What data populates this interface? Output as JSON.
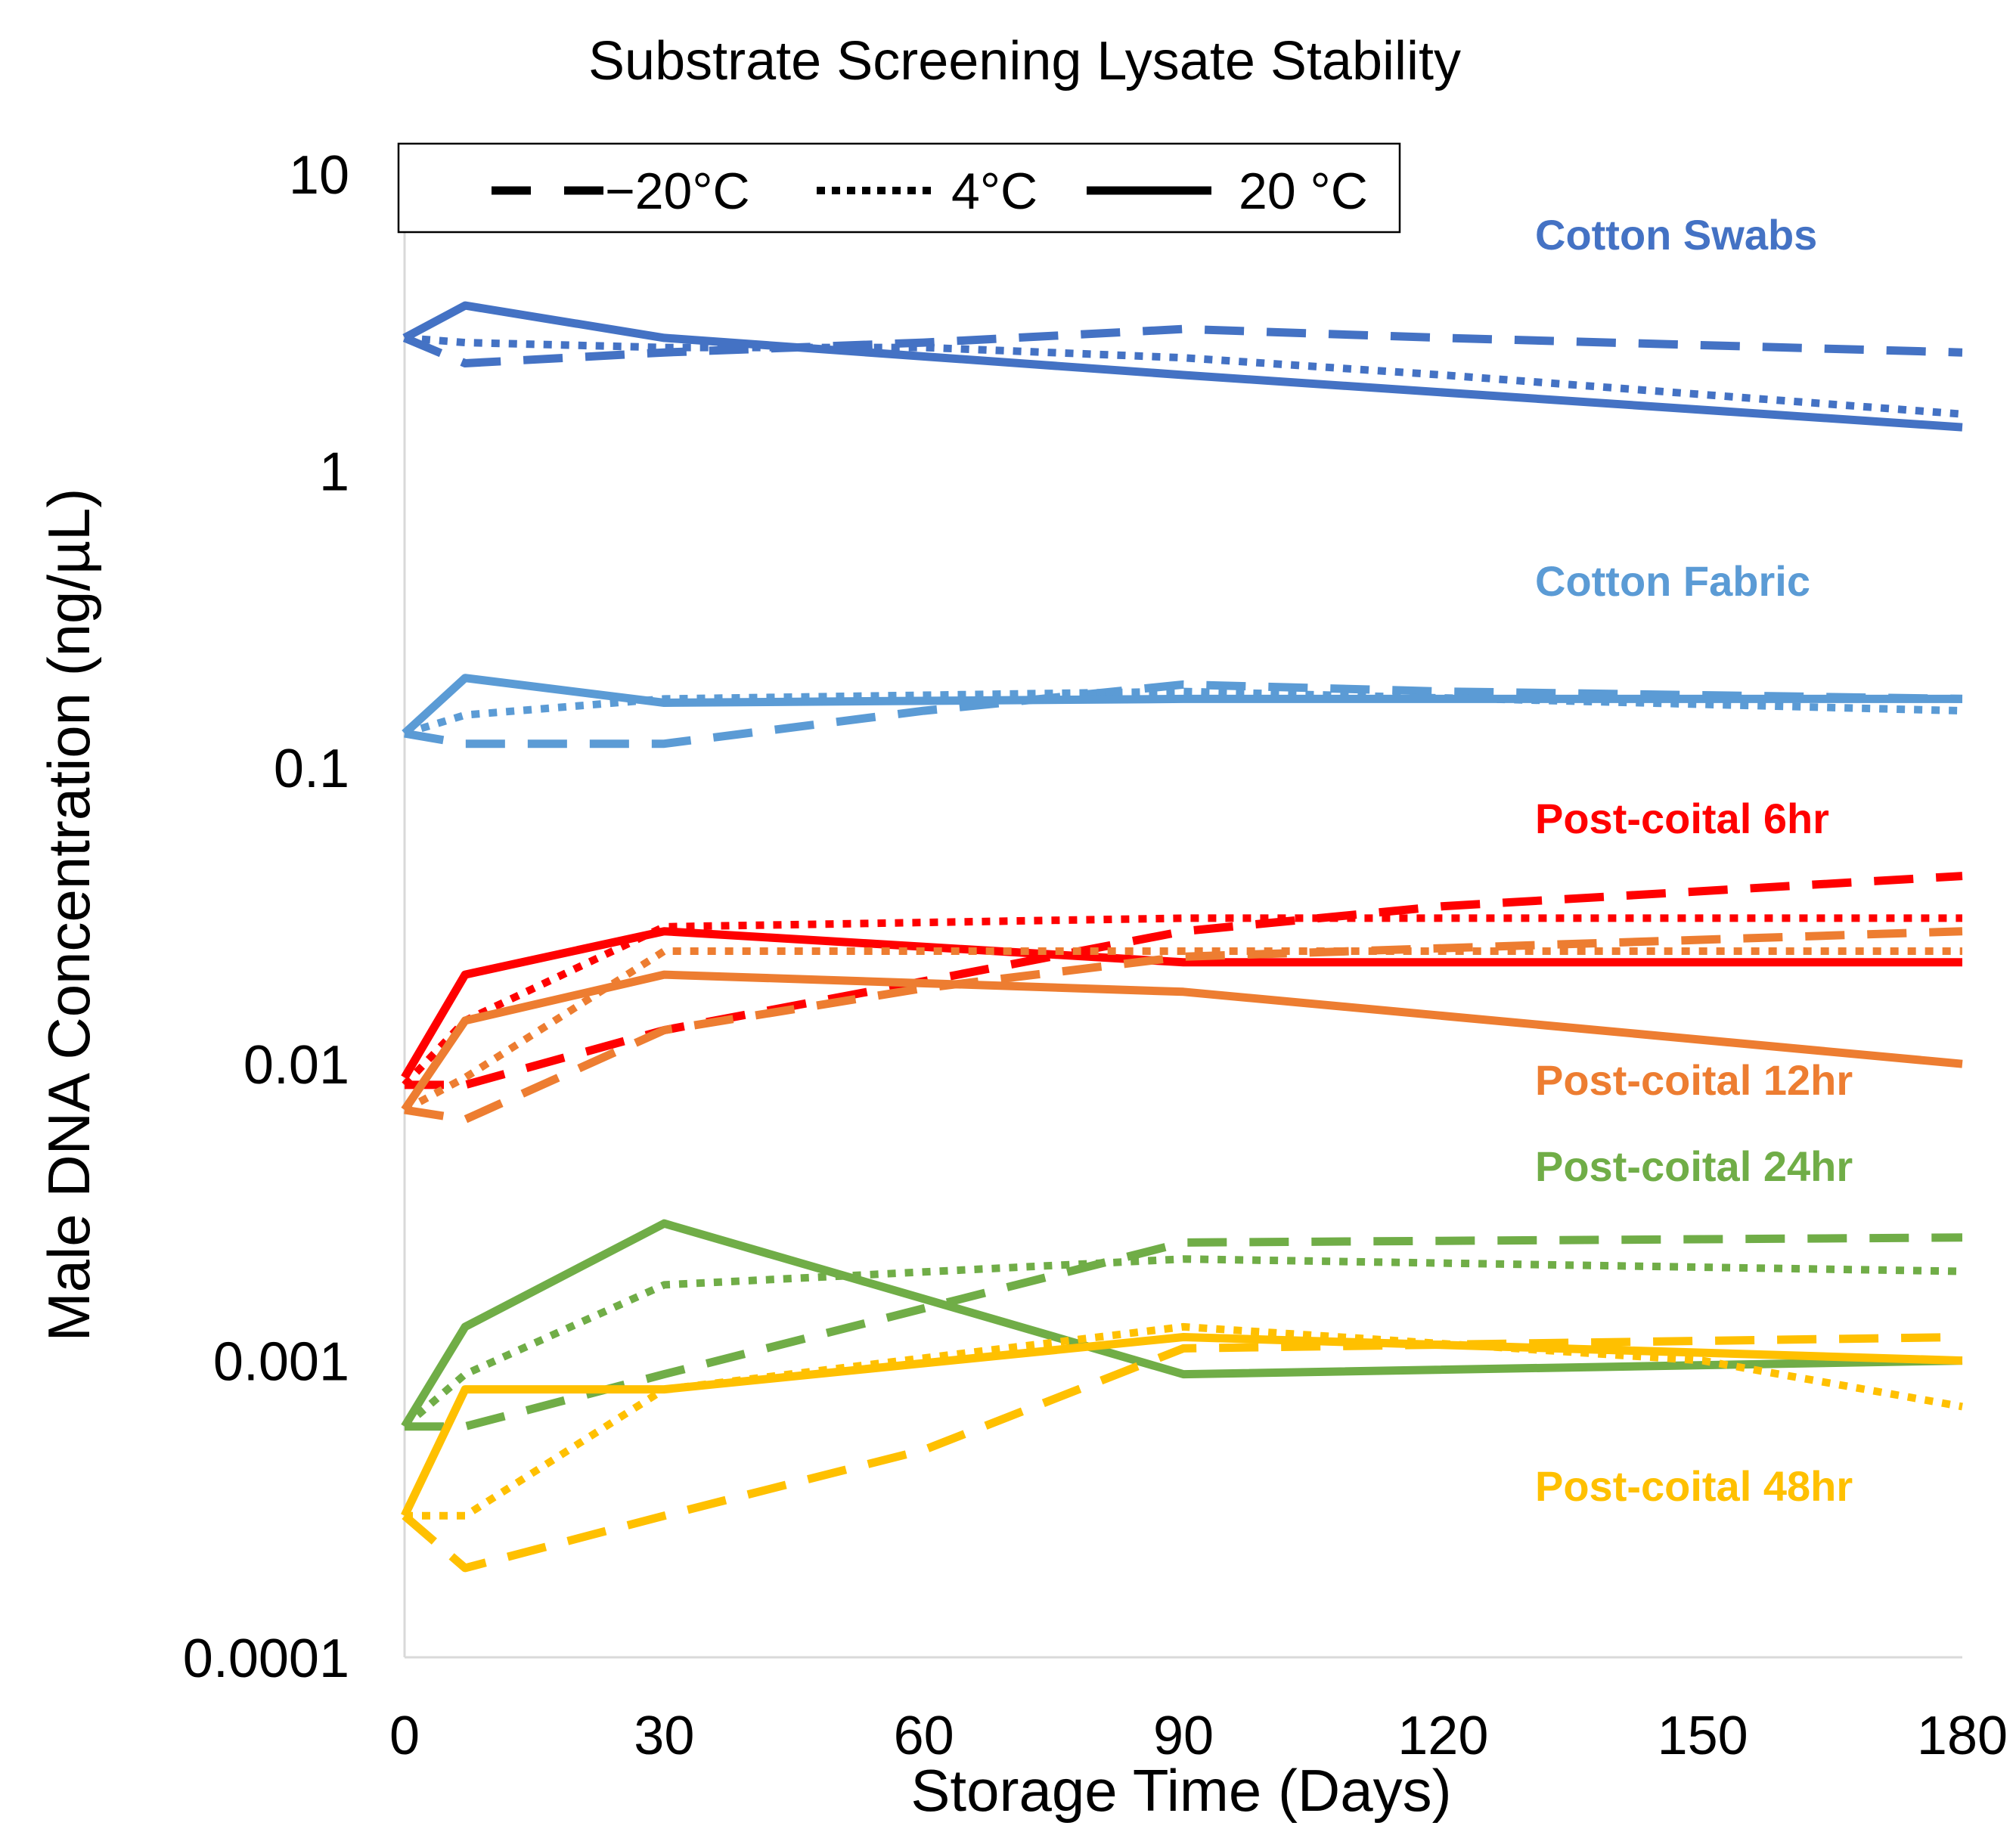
{
  "chart_data": {
    "type": "line",
    "title": "Substrate Screening Lysate Stability",
    "xlabel": "Storage Time (Days)",
    "ylabel": "Male DNA Concentration (ng/µL)",
    "x_ticks": [
      0,
      30,
      60,
      90,
      120,
      150,
      180
    ],
    "y_ticks": [
      "10",
      "1",
      "0.1",
      "0.01",
      "0.001",
      "0.0001"
    ],
    "y_tick_values": [
      10,
      1,
      0.1,
      0.01,
      0.001,
      0.0001
    ],
    "xlim": [
      0,
      180
    ],
    "ylim": [
      0.0001,
      10
    ],
    "y_scale": "log",
    "grid": false,
    "legend": {
      "placement": "top-left",
      "entries": [
        {
          "label": "−20°C",
          "style": "dashed"
        },
        {
          "label": "4°C",
          "style": "dotted"
        },
        {
          "label": "20 °C",
          "style": "solid"
        }
      ]
    },
    "groups": [
      {
        "label": "Cotton Swabs",
        "color": "#4472C4",
        "series": [
          {
            "temp": "−20°C",
            "style": "dashed",
            "points": [
              [
                0,
                2.8
              ],
              [
                7,
                2.3
              ],
              [
                30,
                2.5
              ],
              [
                60,
                2.7
              ],
              [
                90,
                3.0
              ],
              [
                120,
                2.8
              ],
              [
                180,
                2.5
              ]
            ]
          },
          {
            "temp": "4°C",
            "style": "dotted",
            "points": [
              [
                0,
                2.8
              ],
              [
                7,
                2.7
              ],
              [
                30,
                2.6
              ],
              [
                60,
                2.6
              ],
              [
                90,
                2.4
              ],
              [
                120,
                2.1
              ],
              [
                180,
                1.55
              ]
            ]
          },
          {
            "temp": "20 °C",
            "style": "solid",
            "points": [
              [
                0,
                2.8
              ],
              [
                7,
                3.6
              ],
              [
                30,
                2.8
              ],
              [
                90,
                2.1
              ],
              [
                180,
                1.4
              ]
            ]
          }
        ]
      },
      {
        "label": "Cotton Fabric",
        "color": "#5B9BD5",
        "series": [
          {
            "temp": "−20°C",
            "style": "dashed",
            "points": [
              [
                0,
                0.13
              ],
              [
                7,
                0.12
              ],
              [
                30,
                0.12
              ],
              [
                60,
                0.155
              ],
              [
                90,
                0.19
              ],
              [
                120,
                0.18
              ],
              [
                180,
                0.17
              ]
            ]
          },
          {
            "temp": "4°C",
            "style": "dotted",
            "points": [
              [
                0,
                0.13
              ],
              [
                7,
                0.15
              ],
              [
                30,
                0.17
              ],
              [
                90,
                0.18
              ],
              [
                180,
                0.155
              ]
            ]
          },
          {
            "temp": "20 °C",
            "style": "solid",
            "points": [
              [
                0,
                0.13
              ],
              [
                7,
                0.2
              ],
              [
                30,
                0.165
              ],
              [
                90,
                0.17
              ],
              [
                180,
                0.17
              ]
            ]
          }
        ]
      },
      {
        "label": "Post-coital 6hr",
        "color": "#FF0000",
        "series": [
          {
            "temp": "−20°C",
            "style": "dashed",
            "points": [
              [
                0,
                0.0085
              ],
              [
                7,
                0.0085
              ],
              [
                30,
                0.013
              ],
              [
                60,
                0.019
              ],
              [
                90,
                0.028
              ],
              [
                120,
                0.034
              ],
              [
                180,
                0.043
              ]
            ]
          },
          {
            "temp": "4°C",
            "style": "dotted",
            "points": [
              [
                0,
                0.0085
              ],
              [
                7,
                0.014
              ],
              [
                30,
                0.029
              ],
              [
                90,
                0.031
              ],
              [
                180,
                0.031
              ]
            ]
          },
          {
            "temp": "20 °C",
            "style": "solid",
            "points": [
              [
                0,
                0.009
              ],
              [
                7,
                0.02
              ],
              [
                30,
                0.028
              ],
              [
                90,
                0.022
              ],
              [
                180,
                0.022
              ]
            ]
          }
        ]
      },
      {
        "label": "Post-coital 12hr",
        "color": "#ED7D31",
        "series": [
          {
            "temp": "−20°C",
            "style": "dashed",
            "points": [
              [
                0,
                0.007
              ],
              [
                7,
                0.0065
              ],
              [
                30,
                0.013
              ],
              [
                60,
                0.018
              ],
              [
                90,
                0.023
              ],
              [
                180,
                0.028
              ]
            ]
          },
          {
            "temp": "4°C",
            "style": "dotted",
            "points": [
              [
                0,
                0.007
              ],
              [
                7,
                0.009
              ],
              [
                30,
                0.024
              ],
              [
                90,
                0.024
              ],
              [
                180,
                0.024
              ]
            ]
          },
          {
            "temp": "20 °C",
            "style": "solid",
            "points": [
              [
                0,
                0.007
              ],
              [
                7,
                0.014
              ],
              [
                30,
                0.02
              ],
              [
                90,
                0.0175
              ],
              [
                180,
                0.01
              ]
            ]
          }
        ]
      },
      {
        "label": "Post-coital 24hr",
        "color": "#70AD47",
        "series": [
          {
            "temp": "−20°C",
            "style": "dashed",
            "points": [
              [
                0,
                0.0006
              ],
              [
                7,
                0.0006
              ],
              [
                30,
                0.0009
              ],
              [
                60,
                0.0015
              ],
              [
                90,
                0.0025
              ],
              [
                180,
                0.0026
              ]
            ]
          },
          {
            "temp": "4°C",
            "style": "dotted",
            "points": [
              [
                0,
                0.0006
              ],
              [
                7,
                0.0009
              ],
              [
                30,
                0.0018
              ],
              [
                90,
                0.0022
              ],
              [
                180,
                0.002
              ]
            ]
          },
          {
            "temp": "20 °C",
            "style": "solid",
            "points": [
              [
                0,
                0.0006
              ],
              [
                7,
                0.0013
              ],
              [
                30,
                0.0029
              ],
              [
                90,
                0.0009
              ],
              [
                180,
                0.001
              ]
            ]
          }
        ]
      },
      {
        "label": "Post-coital 48hr",
        "color": "#FFC000",
        "series": [
          {
            "temp": "−20°C",
            "style": "dashed",
            "points": [
              [
                0,
                0.0003
              ],
              [
                7,
                0.0002
              ],
              [
                30,
                0.0003
              ],
              [
                60,
                0.0005
              ],
              [
                90,
                0.0011
              ],
              [
                180,
                0.0012
              ]
            ]
          },
          {
            "temp": "4°C",
            "style": "dotted",
            "points": [
              [
                0,
                0.0003
              ],
              [
                7,
                0.0003
              ],
              [
                30,
                0.0008
              ],
              [
                90,
                0.0013
              ],
              [
                150,
                0.001
              ],
              [
                180,
                0.0007
              ]
            ]
          },
          {
            "temp": "20 °C",
            "style": "solid",
            "points": [
              [
                0,
                0.0003
              ],
              [
                7,
                0.0008
              ],
              [
                30,
                0.0008
              ],
              [
                90,
                0.0012
              ],
              [
                180,
                0.001
              ]
            ]
          }
        ]
      }
    ]
  }
}
